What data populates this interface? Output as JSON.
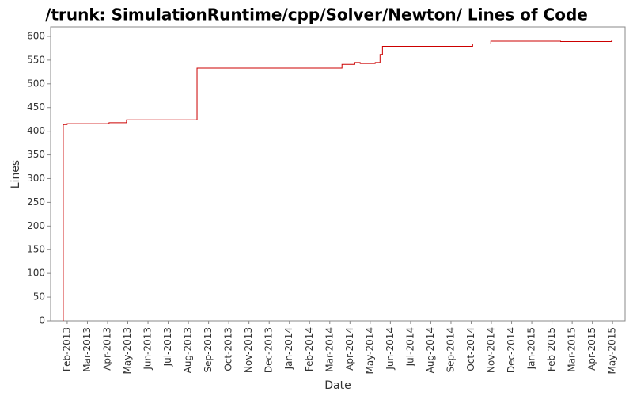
{
  "chart_data": {
    "type": "line",
    "step": "post",
    "title": "/trunk: SimulationRuntime/cpp/Solver/Newton/ Lines of Code",
    "x_label": "Date",
    "y_label": "Lines",
    "x": [
      2013.067,
      2013.067,
      2013.083,
      2013.256,
      2013.328,
      2013.619,
      2014.217,
      2014.27,
      2014.292,
      2014.354,
      2014.374,
      2014.384,
      2014.756,
      2014.831,
      2015.119,
      2015.328,
      2015.333
    ],
    "series": [
      {
        "name": "Lines",
        "color": "#cc0000",
        "values": [
          0,
          414,
          416,
          418,
          424,
          533,
          541,
          545,
          543,
          545,
          562,
          579,
          584,
          590,
          589,
          590,
          590
        ]
      }
    ],
    "xlim": [
      2013.015,
      2015.385
    ],
    "ylim": [
      0,
      620
    ],
    "yticks": [
      0,
      50,
      100,
      150,
      200,
      250,
      300,
      350,
      400,
      450,
      500,
      550,
      600
    ],
    "xticks": [
      {
        "value": 2013.0833,
        "label": "Feb-2013"
      },
      {
        "value": 2013.1667,
        "label": "Mar-2013"
      },
      {
        "value": 2013.25,
        "label": "Apr-2013"
      },
      {
        "value": 2013.3333,
        "label": "May-2013"
      },
      {
        "value": 2013.4167,
        "label": "Jun-2013"
      },
      {
        "value": 2013.5,
        "label": "Jul-2013"
      },
      {
        "value": 2013.5833,
        "label": "Aug-2013"
      },
      {
        "value": 2013.6667,
        "label": "Sep-2013"
      },
      {
        "value": 2013.75,
        "label": "Oct-2013"
      },
      {
        "value": 2013.8333,
        "label": "Nov-2013"
      },
      {
        "value": 2013.9167,
        "label": "Dec-2013"
      },
      {
        "value": 2014.0,
        "label": "Jan-2014"
      },
      {
        "value": 2014.0833,
        "label": "Feb-2014"
      },
      {
        "value": 2014.1667,
        "label": "Mar-2014"
      },
      {
        "value": 2014.25,
        "label": "Apr-2014"
      },
      {
        "value": 2014.3333,
        "label": "May-2014"
      },
      {
        "value": 2014.4167,
        "label": "Jun-2014"
      },
      {
        "value": 2014.5,
        "label": "Jul-2014"
      },
      {
        "value": 2014.5833,
        "label": "Aug-2014"
      },
      {
        "value": 2014.6667,
        "label": "Sep-2014"
      },
      {
        "value": 2014.75,
        "label": "Oct-2014"
      },
      {
        "value": 2014.8333,
        "label": "Nov-2014"
      },
      {
        "value": 2014.9167,
        "label": "Dec-2014"
      },
      {
        "value": 2015.0,
        "label": "Jan-2015"
      },
      {
        "value": 2015.0833,
        "label": "Feb-2015"
      },
      {
        "value": 2015.1667,
        "label": "Mar-2015"
      },
      {
        "value": 2015.25,
        "label": "Apr-2015"
      },
      {
        "value": 2015.3333,
        "label": "May-2015"
      }
    ],
    "grid": false
  }
}
